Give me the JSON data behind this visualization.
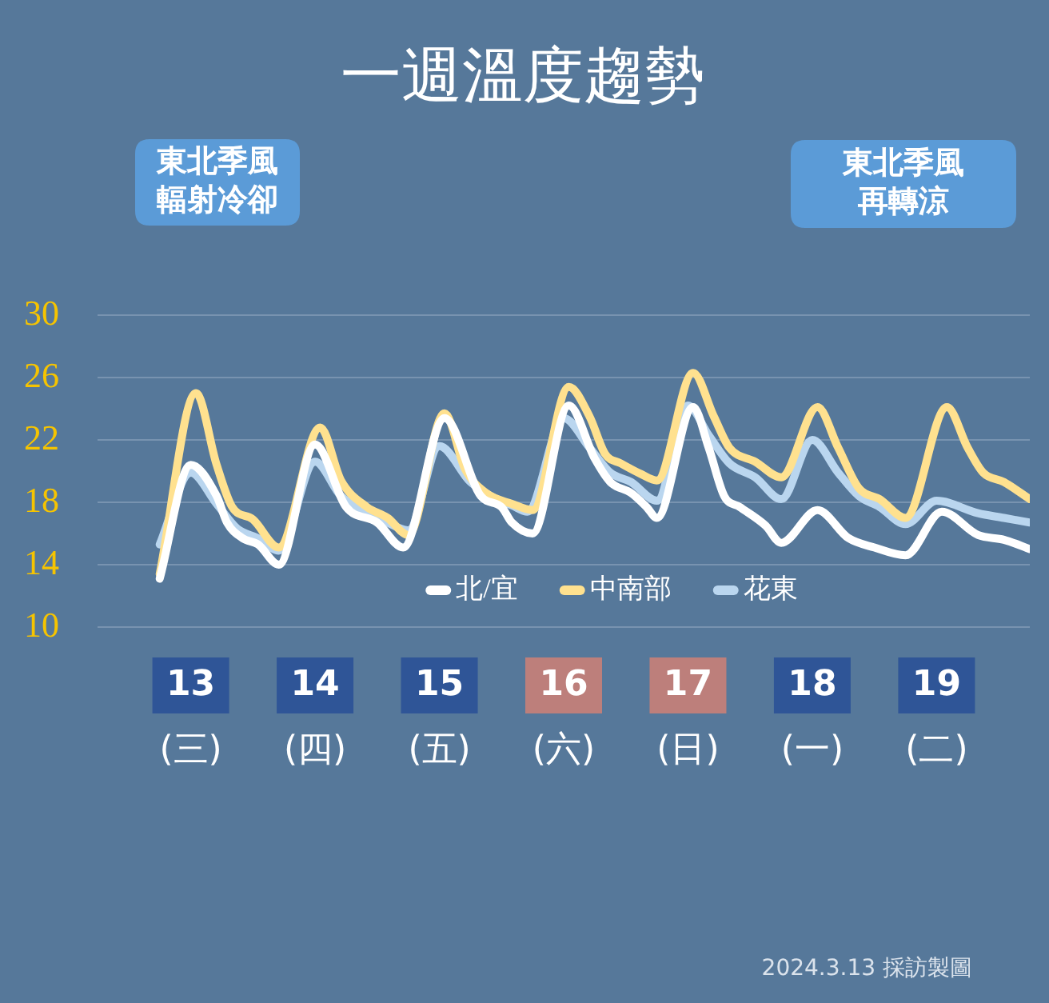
{
  "chart_data": {
    "type": "line",
    "title": "一週溫度趨勢",
    "annotations": [
      "東北季風輻射冷卻",
      "東北季風再轉涼",
      "2024.3.13 採訪製圖"
    ],
    "xlim": [
      "2024-03-12T18:00",
      "2024-03-20T06:00"
    ],
    "xticks": [
      {
        "value": "2024-03-13T12:00",
        "label": "13\n(三)"
      },
      {
        "value": "2024-03-14T12:00",
        "label": "14\n(四)"
      },
      {
        "value": "2024-03-15T12:00",
        "label": "15\n(五)"
      },
      {
        "value": "2024-03-16T12:00",
        "label": "16\n(六)"
      },
      {
        "value": "2024-03-17T12:00",
        "label": "17\n(日)"
      },
      {
        "value": "2024-03-18T12:00",
        "label": "18\n(一)"
      },
      {
        "value": "2024-03-19T12:00",
        "label": "19\n(二)"
      }
    ],
    "ylim": [
      10,
      30
    ],
    "yticks": [
      10,
      14,
      18,
      22,
      26,
      30
    ],
    "grid": "y",
    "legend": "bottom",
    "series": [
      {
        "name": "北/宜",
        "color": "#ffffff",
        "x": [
          "2024-03-13T06:00",
          "2024-03-13T12:00",
          "2024-03-13T17:00",
          "2024-03-13T19:00",
          "2024-03-13T22:00",
          "2024-03-14T01:00",
          "2024-03-14T05:00",
          "2024-03-14T12:00",
          "2024-03-14T18:00",
          "2024-03-15T00:00",
          "2024-03-15T05:00",
          "2024-03-15T13:00",
          "2024-03-15T20:00",
          "2024-03-16T00:00",
          "2024-03-16T02:00",
          "2024-03-16T06:00",
          "2024-03-16T13:00",
          "2024-03-16T18:00",
          "2024-03-16T21:00",
          "2024-03-17T01:00",
          "2024-03-17T04:00",
          "2024-03-17T06:00",
          "2024-03-17T13:00",
          "2024-03-17T16:00",
          "2024-03-17T19:00",
          "2024-03-17T22:00",
          "2024-03-18T03:00",
          "2024-03-18T06:00",
          "2024-03-18T13:00",
          "2024-03-18T19:00",
          "2024-03-19T00:00",
          "2024-03-19T06:00",
          "2024-03-19T13:00",
          "2024-03-19T20:00",
          "2024-03-20T01:00",
          "2024-03-20T06:00"
        ],
        "values": [
          13.1,
          20.4,
          18.4,
          16.7,
          15.7,
          15.3,
          14.0,
          21.7,
          17.7,
          16.7,
          15.1,
          23.4,
          18.4,
          17.7,
          16.7,
          16.0,
          24.2,
          20.8,
          19.3,
          18.6,
          17.7,
          17.0,
          24.1,
          21.5,
          18.4,
          17.7,
          16.5,
          15.4,
          17.5,
          15.7,
          15.1,
          14.6,
          17.4,
          15.9,
          15.6,
          15.0
        ]
      },
      {
        "name": "中南部",
        "color": "#ffe18f",
        "x": [
          "2024-03-13T06:00",
          "2024-03-13T13:00",
          "2024-03-13T17:00",
          "2024-03-13T20:00",
          "2024-03-14T00:00",
          "2024-03-14T05:00",
          "2024-03-14T13:00",
          "2024-03-14T17:00",
          "2024-03-14T22:00",
          "2024-03-15T02:00",
          "2024-03-15T06:00",
          "2024-03-15T13:00",
          "2024-03-15T17:00",
          "2024-03-15T21:00",
          "2024-03-16T02:00",
          "2024-03-16T06:00",
          "2024-03-16T13:00",
          "2024-03-16T17:00",
          "2024-03-16T20:00",
          "2024-03-16T23:00",
          "2024-03-17T03:00",
          "2024-03-17T06:00",
          "2024-03-17T13:00",
          "2024-03-17T17:00",
          "2024-03-17T20:00",
          "2024-03-18T01:00",
          "2024-03-18T06:00",
          "2024-03-18T13:00",
          "2024-03-18T17:00",
          "2024-03-18T21:00",
          "2024-03-19T01:00",
          "2024-03-19T06:00",
          "2024-03-19T14:00",
          "2024-03-19T18:00",
          "2024-03-19T21:00",
          "2024-03-20T01:00",
          "2024-03-20T06:00"
        ],
        "values": [
          13.4,
          25.0,
          20.4,
          17.7,
          16.9,
          15.1,
          22.8,
          19.4,
          17.7,
          17.0,
          15.9,
          23.7,
          20.1,
          18.6,
          17.9,
          17.5,
          25.4,
          23.5,
          21.1,
          20.5,
          19.8,
          19.4,
          26.3,
          23.5,
          21.5,
          20.6,
          19.6,
          24.1,
          21.5,
          18.9,
          18.2,
          17.0,
          24.1,
          21.5,
          19.9,
          19.3,
          18.2
        ]
      },
      {
        "name": "花東",
        "color": "#bad6ef",
        "x": [
          "2024-03-13T06:00",
          "2024-03-13T12:00",
          "2024-03-13T17:00",
          "2024-03-13T21:00",
          "2024-03-14T01:00",
          "2024-03-14T05:00",
          "2024-03-14T12:00",
          "2024-03-14T17:00",
          "2024-03-14T22:00",
          "2024-03-15T02:00",
          "2024-03-15T06:00",
          "2024-03-15T12:00",
          "2024-03-15T18:00",
          "2024-03-15T23:00",
          "2024-03-16T02:00",
          "2024-03-16T05:00",
          "2024-03-16T12:00",
          "2024-03-16T17:00",
          "2024-03-16T21:00",
          "2024-03-17T01:00",
          "2024-03-17T06:00",
          "2024-03-17T12:00",
          "2024-03-17T16:00",
          "2024-03-17T20:00",
          "2024-03-18T01:00",
          "2024-03-18T06:00",
          "2024-03-18T12:00",
          "2024-03-18T17:00",
          "2024-03-18T21:00",
          "2024-03-19T01:00",
          "2024-03-19T06:00",
          "2024-03-19T12:00",
          "2024-03-19T20:00",
          "2024-03-20T01:00",
          "2024-03-20T06:00"
        ],
        "values": [
          15.3,
          19.9,
          17.9,
          16.3,
          15.7,
          14.9,
          20.6,
          18.4,
          17.4,
          16.7,
          16.2,
          21.6,
          19.3,
          18.2,
          17.8,
          17.4,
          23.4,
          21.5,
          19.9,
          19.3,
          18.1,
          24.2,
          22.3,
          20.5,
          19.6,
          18.2,
          22.0,
          19.9,
          18.4,
          17.7,
          16.6,
          18.1,
          17.3,
          17.0,
          16.7
        ]
      }
    ]
  }
}
